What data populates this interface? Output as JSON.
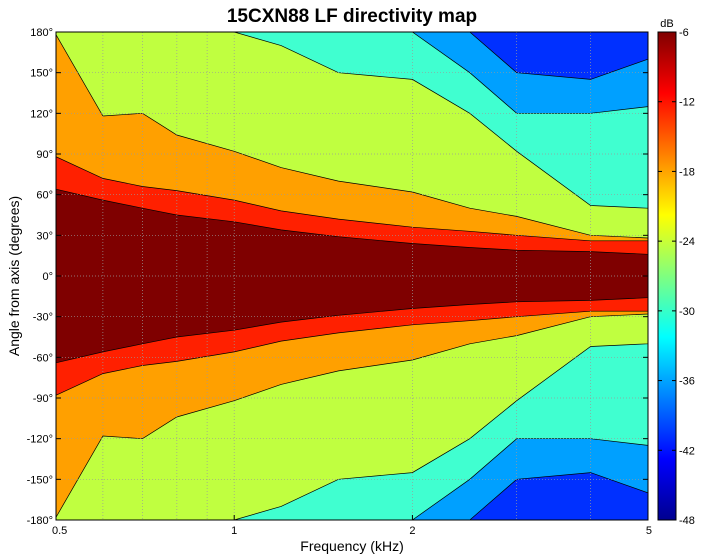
{
  "chart_data": {
    "type": "heatmap",
    "title": "15CXN88 LF directivity map",
    "xlabel": "Frequency (kHz)",
    "ylabel": "Angle from axis (degrees)",
    "x_scale": "log",
    "xlim": [
      0.5,
      5
    ],
    "ylim": [
      -180,
      180
    ],
    "x_ticks": [
      0.5,
      1,
      2,
      5
    ],
    "x_tick_labels": [
      "0.5",
      "1",
      "2",
      "5"
    ],
    "y_ticks": [
      180,
      150,
      120,
      90,
      60,
      30,
      0,
      -30,
      -60,
      -90,
      -120,
      -150,
      -180
    ],
    "y_tick_labels": [
      "180°",
      "150°",
      "120°",
      "90°",
      "60°",
      "30°",
      "0°",
      "-30°",
      "-60°",
      "-90°",
      "-120°",
      "-150°",
      "-180°"
    ],
    "grid": true,
    "colorbar": {
      "unit": "dB",
      "range": [
        -48,
        -6
      ],
      "ticks": [
        -6,
        -12,
        -18,
        -24,
        -30,
        -36,
        -42,
        -48
      ],
      "tick_labels": [
        "-6",
        "-12",
        "-18",
        "-24",
        "-30",
        "-36",
        "-42",
        "-48"
      ],
      "colormap": "jet"
    },
    "contour_levels_db": [
      -9,
      -15,
      -21,
      -27,
      -33,
      -39
    ],
    "band_colors": [
      "#00008f",
      "#0030ff",
      "#00a0ff",
      "#40ffd0",
      "#c0ff40",
      "#ffa000",
      "#ff2000",
      "#7f0000"
    ],
    "boundaries": {
      "frequencies": [
        0.5,
        0.6,
        0.7,
        0.8,
        1.0,
        1.2,
        1.5,
        2.0,
        2.5,
        3.0,
        4.0,
        5.0
      ],
      "half_angle_deg_-9dB": [
        64,
        56,
        50,
        45,
        40,
        34,
        29,
        24,
        21,
        19,
        18,
        16
      ],
      "half_angle_deg_-15dB": [
        88,
        72,
        66,
        63,
        56,
        48,
        42,
        36,
        33,
        30,
        26,
        26
      ],
      "half_angle_deg_-21dB": [
        178,
        118,
        120,
        104,
        92,
        80,
        70,
        62,
        50,
        44,
        30,
        28
      ],
      "half_angle_deg_-27dB": [
        180,
        180,
        180,
        180,
        180,
        170,
        150,
        145,
        120,
        92,
        52,
        50
      ],
      "half_angle_deg_-33dB": [
        180,
        180,
        180,
        180,
        180,
        180,
        180,
        180,
        150,
        120,
        120,
        125
      ],
      "half_angle_deg_-39dB": [
        180,
        180,
        180,
        180,
        180,
        180,
        180,
        180,
        180,
        150,
        145,
        160
      ]
    }
  }
}
